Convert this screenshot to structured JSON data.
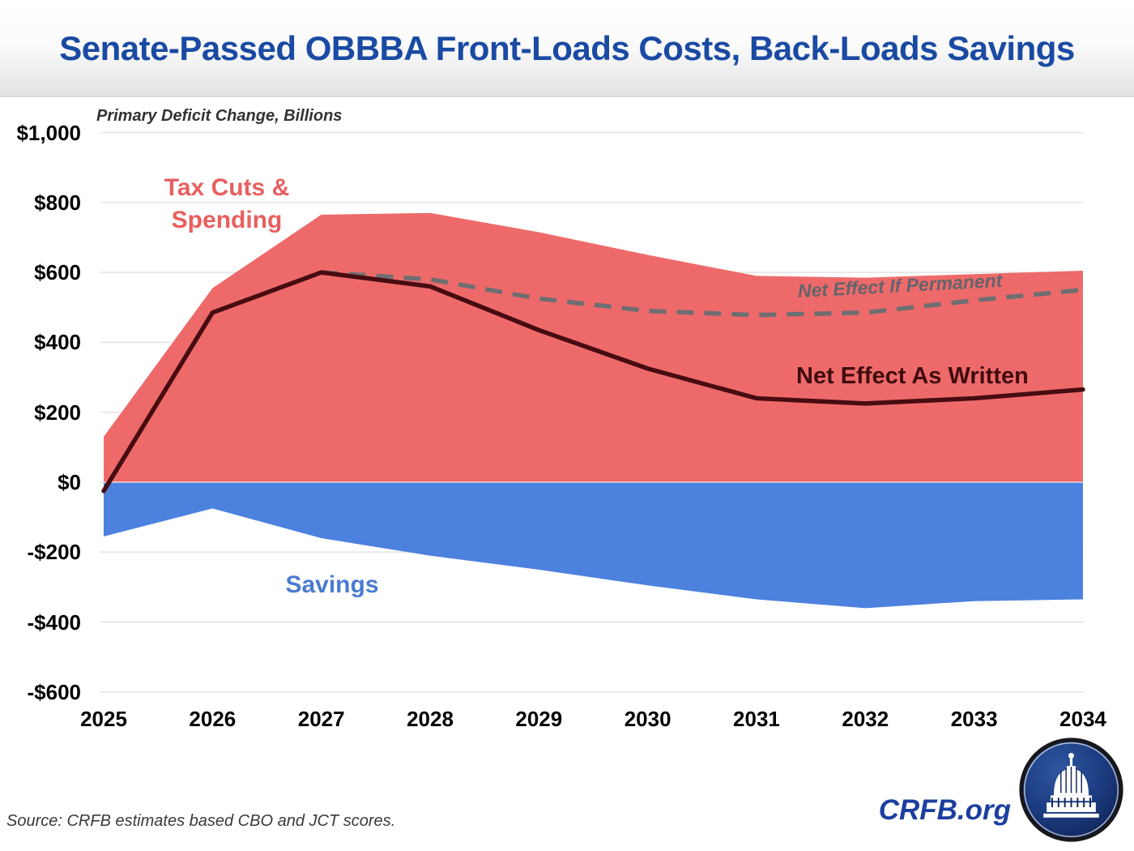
{
  "title": "Senate-Passed OBBBA Front-Loads Costs, Back-Loads Savings",
  "subtitle": "Primary Deficit Change, Billions",
  "source_note": "Source: CRFB estimates based CBO and JCT scores.",
  "branding": {
    "site_label": "CRFB.org"
  },
  "annotations": {
    "cost_area_line1": "Tax Cuts &",
    "cost_area_line2": "Spending",
    "savings_area": "Savings",
    "net_permanent": "Net Effect If Permanent",
    "net_written": "Net Effect As Written"
  },
  "colors": {
    "title_blue": "#1a4aa3",
    "cost_fill": "#ee6a6a",
    "cost_label": "#e85f5f",
    "savings_fill": "#4c81de",
    "savings_label": "#4a7cd0",
    "net_written_line": "#470c10",
    "net_written_label": "#400c0e",
    "net_permanent_line": "#6e6e72",
    "gridline": "#e8e8e8",
    "logo_navy": "#13265c"
  },
  "chart_data": {
    "type": "area",
    "title": "Senate-Passed OBBBA Front-Loads Costs, Back-Loads Savings",
    "ylabel": "Primary Deficit Change, Billions",
    "x": [
      2025,
      2026,
      2027,
      2028,
      2029,
      2030,
      2031,
      2032,
      2033,
      2034
    ],
    "series": [
      {
        "name": "Tax Cuts & Spending",
        "kind": "area",
        "color": "#ee6a6a",
        "values": [
          130,
          555,
          765,
          770,
          715,
          650,
          590,
          585,
          595,
          605
        ]
      },
      {
        "name": "Savings",
        "kind": "area",
        "color": "#4c81de",
        "values": [
          -155,
          -75,
          -160,
          -210,
          -250,
          -295,
          -335,
          -360,
          -340,
          -335
        ]
      },
      {
        "name": "Net Effect As Written",
        "kind": "line",
        "style": "solid",
        "color": "#470c10",
        "values": [
          -25,
          485,
          600,
          560,
          435,
          325,
          240,
          225,
          240,
          265
        ]
      },
      {
        "name": "Net Effect If Permanent",
        "kind": "line",
        "style": "dashed",
        "color": "#6e6e72",
        "values": [
          null,
          null,
          600,
          580,
          525,
          490,
          478,
          485,
          520,
          550
        ]
      }
    ],
    "ylim": [
      -600,
      1000
    ],
    "yticks": [
      {
        "value": 1000,
        "label": "$1,000"
      },
      {
        "value": 800,
        "label": "$800"
      },
      {
        "value": 600,
        "label": "$600"
      },
      {
        "value": 400,
        "label": "$400"
      },
      {
        "value": 200,
        "label": "$200"
      },
      {
        "value": 0,
        "label": "$0"
      },
      {
        "value": -200,
        "label": "-$200"
      },
      {
        "value": -400,
        "label": "-$400"
      },
      {
        "value": -600,
        "label": "-$600"
      }
    ],
    "grid": true,
    "legend_position": "inline-annotations"
  }
}
